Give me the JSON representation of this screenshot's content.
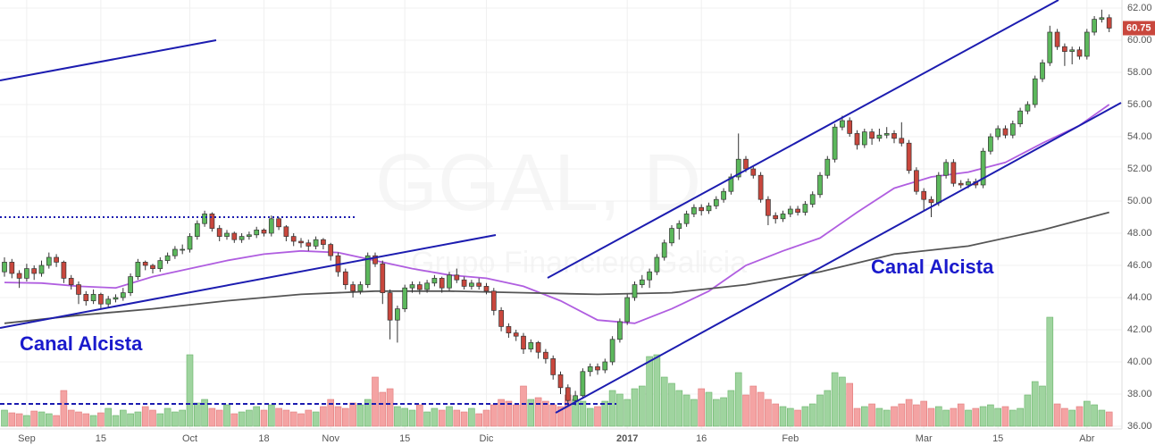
{
  "chart_data": {
    "type": "candlestick",
    "watermark": "GGAL, D",
    "watermark_sub": "Grupo Financiero Galicia",
    "annotations": [
      "Canal Alcista",
      "Canal Alcista"
    ],
    "ylim": [
      36,
      62
    ],
    "yticks": [
      {
        "value": 36,
        "label": "36.00"
      },
      {
        "value": 38,
        "label": "38.00"
      },
      {
        "value": 40,
        "label": "40.00"
      },
      {
        "value": 42,
        "label": "42.00"
      },
      {
        "value": 44,
        "label": "44.00"
      },
      {
        "value": 46,
        "label": "46.00"
      },
      {
        "value": 48,
        "label": "48.00"
      },
      {
        "value": 50,
        "label": "50.00"
      },
      {
        "value": 52,
        "label": "52.00"
      },
      {
        "value": 54,
        "label": "54.00"
      },
      {
        "value": 56,
        "label": "56.00"
      },
      {
        "value": 58,
        "label": "58.00"
      },
      {
        "value": 60,
        "label": "60.00"
      },
      {
        "value": 62,
        "label": "62.00"
      }
    ],
    "xticks": [
      {
        "value": 3,
        "label": "Sep"
      },
      {
        "value": 13,
        "label": "15"
      },
      {
        "value": 25,
        "label": "Oct"
      },
      {
        "value": 35,
        "label": "18"
      },
      {
        "value": 44,
        "label": "Nov"
      },
      {
        "value": 54,
        "label": "15"
      },
      {
        "value": 65,
        "label": "Dic"
      },
      {
        "value": 84,
        "label": "2017"
      },
      {
        "value": 94,
        "label": "16"
      },
      {
        "value": 106,
        "label": "Feb"
      },
      {
        "value": 124,
        "label": "Mar"
      },
      {
        "value": 134,
        "label": "15"
      },
      {
        "value": 146,
        "label": "Abr"
      }
    ],
    "up_color": "#5cb85c",
    "down_color": "#c9473d",
    "ohlc": [
      [
        45.6,
        46.5,
        45.3,
        46.2
      ],
      [
        46.2,
        46.4,
        45.2,
        45.5
      ],
      [
        45.5,
        45.7,
        44.6,
        45.2
      ],
      [
        45.2,
        46.1,
        45,
        45.8
      ],
      [
        45.8,
        46,
        45.1,
        45.5
      ],
      [
        45.5,
        46.3,
        45.3,
        46
      ],
      [
        46,
        46.8,
        45.8,
        46.5
      ],
      [
        46.5,
        46.7,
        45.9,
        46.2
      ],
      [
        46.2,
        46.3,
        44.9,
        45.2
      ],
      [
        45.2,
        45.4,
        44.5,
        44.8
      ],
      [
        44.8,
        45,
        43.6,
        44.2
      ],
      [
        44.2,
        44.4,
        43.5,
        43.8
      ],
      [
        43.8,
        44.5,
        43.6,
        44.2
      ],
      [
        44.2,
        44.3,
        43.3,
        43.6
      ],
      [
        43.6,
        44.1,
        43.4,
        43.9
      ],
      [
        43.9,
        44.2,
        43.7,
        44
      ],
      [
        44,
        44.6,
        43.8,
        44.3
      ],
      [
        44.3,
        45.5,
        44.1,
        45.3
      ],
      [
        45.3,
        46.4,
        45.1,
        46.2
      ],
      [
        46.2,
        46.3,
        45.7,
        46
      ],
      [
        46,
        46.1,
        45.5,
        45.8
      ],
      [
        45.8,
        46.5,
        45.6,
        46.3
      ],
      [
        46.3,
        46.8,
        46.1,
        46.6
      ],
      [
        46.6,
        47.2,
        46.4,
        47
      ],
      [
        47,
        47.3,
        46.7,
        47
      ],
      [
        47,
        48,
        46.8,
        47.8
      ],
      [
        47.8,
        48.8,
        47.6,
        48.6
      ],
      [
        48.6,
        49.4,
        48.4,
        49.2
      ],
      [
        49.2,
        49.3,
        48.1,
        48.3
      ],
      [
        48.3,
        48.5,
        47.5,
        47.8
      ],
      [
        47.8,
        48.2,
        47.6,
        48
      ],
      [
        48,
        48.1,
        47.4,
        47.6
      ],
      [
        47.6,
        48,
        47.4,
        47.8
      ],
      [
        47.8,
        48.1,
        47.6,
        47.9
      ],
      [
        47.9,
        48.4,
        47.7,
        48.2
      ],
      [
        48.2,
        48.3,
        47.8,
        48
      ],
      [
        48,
        49.1,
        47.8,
        48.9
      ],
      [
        48.9,
        49,
        48.2,
        48.4
      ],
      [
        48.4,
        48.5,
        47.5,
        47.8
      ],
      [
        47.8,
        48,
        47.2,
        47.5
      ],
      [
        47.5,
        47.7,
        47.1,
        47.4
      ],
      [
        47.4,
        47.6,
        46.9,
        47.2
      ],
      [
        47.2,
        47.8,
        47,
        47.6
      ],
      [
        47.6,
        47.7,
        47,
        47.3
      ],
      [
        47.3,
        47.4,
        46.3,
        46.6
      ],
      [
        46.6,
        46.8,
        45.3,
        45.6
      ],
      [
        45.6,
        45.8,
        44.5,
        44.8
      ],
      [
        44.8,
        45,
        44,
        44.4
      ],
      [
        44.4,
        45,
        44.2,
        44.8
      ],
      [
        44.8,
        46.8,
        44.6,
        46.6
      ],
      [
        46.6,
        46.8,
        45.9,
        46.1
      ],
      [
        46.1,
        46.3,
        43.6,
        44.3
      ],
      [
        44.3,
        44.5,
        41.4,
        42.6
      ],
      [
        42.6,
        43.5,
        41.2,
        43.3
      ],
      [
        43.3,
        44.8,
        43.1,
        44.6
      ],
      [
        44.6,
        45,
        44.3,
        44.8
      ],
      [
        44.8,
        45,
        44.2,
        44.5
      ],
      [
        44.5,
        45.1,
        44.3,
        44.9
      ],
      [
        44.9,
        45.4,
        44.7,
        45.2
      ],
      [
        45.2,
        45.3,
        44.3,
        44.6
      ],
      [
        44.6,
        45.6,
        44.4,
        45.4
      ],
      [
        45.4,
        45.8,
        44.9,
        45.1
      ],
      [
        45.1,
        45.3,
        44.5,
        44.7
      ],
      [
        44.7,
        45.1,
        44.5,
        44.9
      ],
      [
        44.9,
        45.2,
        44.5,
        44.7
      ],
      [
        44.7,
        44.9,
        44.2,
        44.4
      ],
      [
        44.4,
        44.6,
        42.9,
        43.2
      ],
      [
        43.2,
        43.4,
        41.9,
        42.2
      ],
      [
        42.2,
        42.4,
        41.5,
        41.8
      ],
      [
        41.8,
        42,
        41.3,
        41.6
      ],
      [
        41.6,
        41.8,
        40.5,
        40.8
      ],
      [
        40.8,
        41.4,
        40.6,
        41.2
      ],
      [
        41.2,
        41.3,
        40.2,
        40.6
      ],
      [
        40.6,
        40.8,
        39.9,
        40.2
      ],
      [
        40.2,
        40.4,
        38.9,
        39.2
      ],
      [
        39.2,
        39.4,
        38,
        38.4
      ],
      [
        38.4,
        38.6,
        37.2,
        37.6
      ],
      [
        37.6,
        38.2,
        37.3,
        37.9
      ],
      [
        37.9,
        39.6,
        37.7,
        39.4
      ],
      [
        39.4,
        39.9,
        39.1,
        39.7
      ],
      [
        39.7,
        39.9,
        39.2,
        39.5
      ],
      [
        39.5,
        40.2,
        39.3,
        40
      ],
      [
        40,
        41.6,
        39.8,
        41.4
      ],
      [
        41.4,
        42.7,
        41.2,
        42.5
      ],
      [
        42.5,
        44.2,
        42.3,
        44
      ],
      [
        44,
        45,
        43.8,
        44.8
      ],
      [
        44.8,
        45.4,
        44.6,
        45.1
      ],
      [
        45.1,
        45.8,
        44.6,
        45.6
      ],
      [
        45.6,
        46.7,
        45.4,
        46.5
      ],
      [
        46.5,
        47.6,
        46.3,
        47.4
      ],
      [
        47.4,
        48.5,
        47.2,
        48.3
      ],
      [
        48.3,
        48.8,
        47.6,
        48.6
      ],
      [
        48.6,
        49.4,
        48.4,
        49.2
      ],
      [
        49.2,
        49.8,
        49,
        49.6
      ],
      [
        49.6,
        49.8,
        49.1,
        49.4
      ],
      [
        49.4,
        49.9,
        49.2,
        49.7
      ],
      [
        49.7,
        50.3,
        49.5,
        50.1
      ],
      [
        50.1,
        50.8,
        49.9,
        50.6
      ],
      [
        50.6,
        51.7,
        50.4,
        51.5
      ],
      [
        51.5,
        54.2,
        51.3,
        52.6
      ],
      [
        52.6,
        52.8,
        51.8,
        52
      ],
      [
        52,
        52.2,
        51.4,
        51.6
      ],
      [
        51.6,
        51.8,
        49.9,
        50.1
      ],
      [
        50.1,
        50.3,
        48.5,
        49.1
      ],
      [
        49.1,
        49.3,
        48.6,
        48.9
      ],
      [
        48.9,
        49.4,
        48.7,
        49.2
      ],
      [
        49.2,
        49.7,
        49,
        49.5
      ],
      [
        49.5,
        49.7,
        49.1,
        49.3
      ],
      [
        49.3,
        50,
        49.1,
        49.8
      ],
      [
        49.8,
        50.6,
        49.6,
        50.4
      ],
      [
        50.4,
        51.8,
        50.2,
        51.6
      ],
      [
        51.6,
        52.8,
        51.4,
        52.6
      ],
      [
        52.6,
        54.8,
        52.4,
        54.6
      ],
      [
        54.6,
        55.3,
        54.4,
        55
      ],
      [
        55,
        55.2,
        54,
        54.2
      ],
      [
        54.2,
        54.4,
        53.2,
        53.5
      ],
      [
        53.5,
        54.5,
        53.3,
        54.3
      ],
      [
        54.3,
        54.5,
        53.5,
        53.9
      ],
      [
        53.9,
        54.5,
        53.7,
        54.1
      ],
      [
        54.1,
        54.6,
        53.9,
        54.2
      ],
      [
        54.2,
        54.4,
        53.6,
        53.9
      ],
      [
        53.9,
        54.9,
        53.4,
        53.6
      ],
      [
        53.6,
        53.8,
        51.7,
        51.9
      ],
      [
        51.9,
        52.1,
        50.4,
        50.6
      ],
      [
        50.6,
        50.8,
        49.4,
        50.1
      ],
      [
        50.1,
        50.3,
        49,
        49.9
      ],
      [
        49.9,
        51.8,
        49.7,
        51.6
      ],
      [
        51.6,
        52.6,
        51.4,
        52.4
      ],
      [
        52.4,
        52.6,
        50.9,
        51.1
      ],
      [
        51.1,
        51.3,
        50.8,
        51
      ],
      [
        51,
        51.4,
        50.8,
        51.2
      ],
      [
        51.2,
        51.4,
        50.8,
        51
      ],
      [
        51,
        53.3,
        50.8,
        53.1
      ],
      [
        53.1,
        54.2,
        52.9,
        54
      ],
      [
        54,
        54.7,
        53.8,
        54.5
      ],
      [
        54.5,
        54.7,
        53.9,
        54.1
      ],
      [
        54.1,
        55,
        53.9,
        54.8
      ],
      [
        54.8,
        55.8,
        54.6,
        55.6
      ],
      [
        55.6,
        56.2,
        55.4,
        56
      ],
      [
        56,
        57.8,
        55.8,
        57.6
      ],
      [
        57.6,
        58.8,
        57.4,
        58.6
      ],
      [
        58.6,
        60.9,
        58.4,
        60.5
      ],
      [
        60.5,
        60.7,
        59.4,
        59.6
      ],
      [
        59.6,
        59.8,
        58.4,
        59.3
      ],
      [
        59.3,
        59.6,
        58.5,
        59.4
      ],
      [
        59.4,
        59.6,
        58.8,
        59
      ],
      [
        59,
        60.7,
        58.8,
        60.5
      ],
      [
        60.5,
        61.5,
        60.3,
        61.3
      ],
      [
        61.3,
        61.9,
        61.1,
        61.4
      ],
      [
        61.4,
        61.6,
        60.5,
        60.75
      ]
    ],
    "volume": [
      18,
      15,
      14,
      12,
      17,
      16,
      14,
      12,
      40,
      18,
      16,
      14,
      12,
      15,
      20,
      12,
      18,
      14,
      16,
      22,
      18,
      14,
      20,
      16,
      18,
      80,
      26,
      30,
      20,
      18,
      24,
      14,
      16,
      18,
      22,
      18,
      24,
      20,
      18,
      16,
      14,
      18,
      16,
      22,
      30,
      22,
      20,
      26,
      24,
      30,
      55,
      38,
      42,
      22,
      20,
      18,
      24,
      16,
      20,
      18,
      22,
      18,
      16,
      20,
      14,
      18,
      24,
      30,
      28,
      24,
      45,
      30,
      32,
      28,
      24,
      22,
      35,
      30,
      28,
      20,
      22,
      28,
      40,
      36,
      30,
      42,
      45,
      78,
      80,
      55,
      48,
      40,
      35,
      30,
      42,
      38,
      30,
      32,
      40,
      60,
      35,
      45,
      38,
      30,
      25,
      22,
      20,
      18,
      22,
      25,
      35,
      40,
      60,
      55,
      48,
      20,
      22,
      25,
      20,
      18,
      22,
      25,
      30,
      24,
      28,
      20,
      22,
      18,
      20,
      25,
      18,
      20,
      22,
      24,
      20,
      22,
      18,
      20,
      35,
      50,
      45,
      122,
      25,
      20,
      18,
      22,
      28,
      24,
      18,
      16
    ],
    "volume_colors": {
      "up": "#9fd49f",
      "down": "#f4a3a3"
    },
    "moving_averages": [
      {
        "color": "#b05ee0",
        "x": [
          0,
          5,
          10,
          15,
          20,
          25,
          30,
          35,
          40,
          45,
          50,
          55,
          60,
          65,
          70,
          75,
          80,
          85,
          90,
          95,
          100,
          105,
          110,
          115,
          120,
          125,
          130,
          135,
          140,
          145,
          149
        ],
        "values": [
          44.94,
          44.9,
          44.7,
          44.6,
          45.3,
          45.8,
          46.3,
          46.7,
          46.9,
          46.8,
          46.3,
          45.8,
          45.4,
          45.2,
          44.7,
          43.8,
          42.6,
          42.4,
          43.3,
          44.4,
          46,
          46.9,
          47.7,
          49.3,
          50.8,
          51.5,
          51.8,
          52.4,
          53.6,
          54.7,
          56
        ]
      },
      {
        "color": "#555555",
        "x": [
          0,
          10,
          20,
          30,
          40,
          50,
          60,
          70,
          80,
          90,
          100,
          110,
          120,
          130,
          140,
          149
        ],
        "values": [
          42.4,
          42.9,
          43.3,
          43.8,
          44.2,
          44.4,
          44.4,
          44.3,
          44.2,
          44.3,
          44.8,
          45.6,
          46.7,
          47.2,
          48.2,
          49.3
        ]
      }
    ]
  }
}
